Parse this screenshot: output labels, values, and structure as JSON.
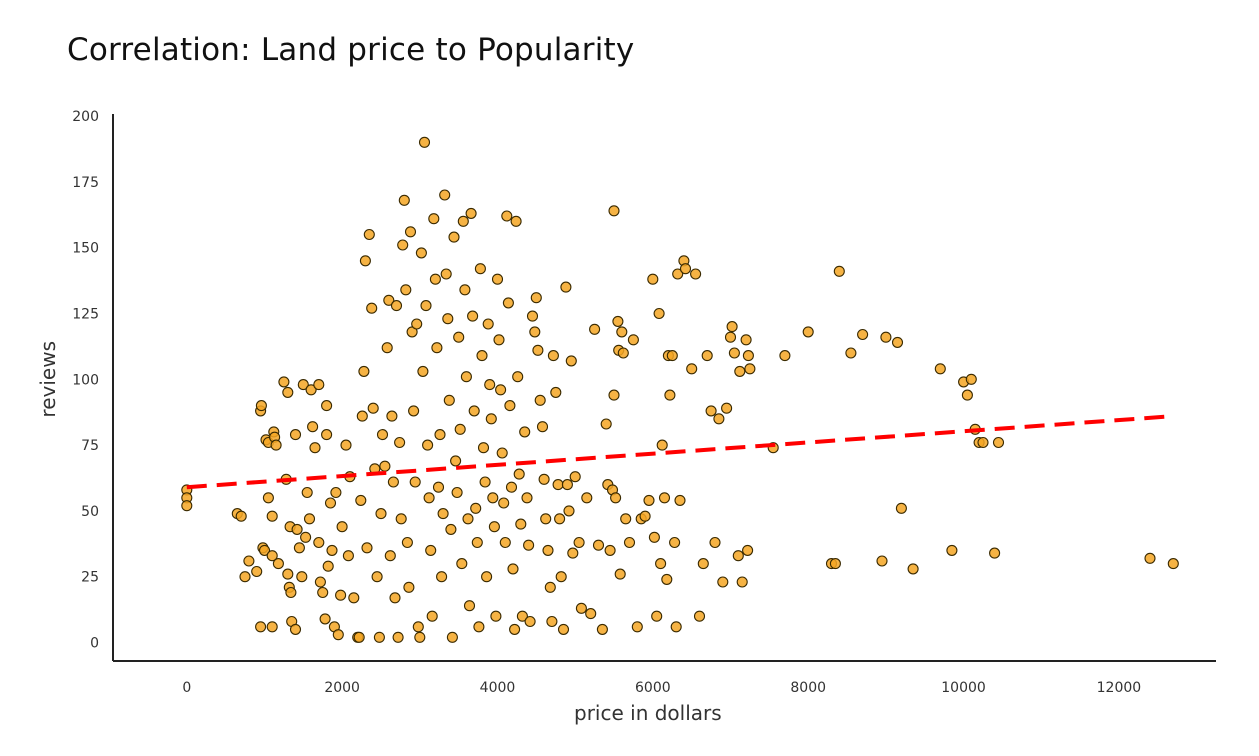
{
  "chart_data": {
    "type": "scatter",
    "title": "Correlation: Land price to Popularity",
    "xlabel": "price in dollars",
    "ylabel": "reviews",
    "xlim": [
      -950,
      13250
    ],
    "ylim": [
      -7,
      200
    ],
    "xticks": [
      0,
      2000,
      4000,
      6000,
      8000,
      10000,
      12000
    ],
    "yticks": [
      0,
      25,
      50,
      75,
      100,
      125,
      150,
      175,
      200
    ],
    "grid": false,
    "colors": {
      "point_fill": "#f5a623",
      "point_edge": "#3a2a00",
      "trend": "#ff0000",
      "axis": "#222222"
    },
    "trendline": {
      "style": "dashed",
      "x": [
        0,
        12700
      ],
      "y": [
        59,
        86
      ]
    },
    "points": [
      [
        0,
        58
      ],
      [
        0,
        55
      ],
      [
        0,
        52
      ],
      [
        650,
        49
      ],
      [
        700,
        48
      ],
      [
        750,
        25
      ],
      [
        800,
        31
      ],
      [
        900,
        27
      ],
      [
        950,
        6
      ],
      [
        950,
        88
      ],
      [
        960,
        90
      ],
      [
        980,
        36
      ],
      [
        1000,
        35
      ],
      [
        1020,
        77
      ],
      [
        1050,
        55
      ],
      [
        1050,
        76
      ],
      [
        1100,
        48
      ],
      [
        1100,
        33
      ],
      [
        1100,
        6
      ],
      [
        1120,
        80
      ],
      [
        1130,
        78
      ],
      [
        1150,
        75
      ],
      [
        1180,
        30
      ],
      [
        1250,
        99
      ],
      [
        1280,
        62
      ],
      [
        1300,
        95
      ],
      [
        1300,
        26
      ],
      [
        1320,
        21
      ],
      [
        1330,
        44
      ],
      [
        1340,
        19
      ],
      [
        1350,
        8
      ],
      [
        1400,
        5
      ],
      [
        1400,
        79
      ],
      [
        1420,
        43
      ],
      [
        1450,
        36
      ],
      [
        1480,
        25
      ],
      [
        1500,
        98
      ],
      [
        1530,
        40
      ],
      [
        1550,
        57
      ],
      [
        1580,
        47
      ],
      [
        1600,
        96
      ],
      [
        1620,
        82
      ],
      [
        1650,
        74
      ],
      [
        1700,
        98
      ],
      [
        1700,
        38
      ],
      [
        1720,
        23
      ],
      [
        1750,
        19
      ],
      [
        1780,
        9
      ],
      [
        1800,
        79
      ],
      [
        1800,
        90
      ],
      [
        1820,
        29
      ],
      [
        1850,
        53
      ],
      [
        1870,
        35
      ],
      [
        1900,
        6
      ],
      [
        1920,
        57
      ],
      [
        1950,
        3
      ],
      [
        1980,
        18
      ],
      [
        2000,
        44
      ],
      [
        2050,
        75
      ],
      [
        2080,
        33
      ],
      [
        2100,
        63
      ],
      [
        2150,
        17
      ],
      [
        2200,
        2
      ],
      [
        2220,
        2
      ],
      [
        2240,
        54
      ],
      [
        2260,
        86
      ],
      [
        2280,
        103
      ],
      [
        2300,
        145
      ],
      [
        2320,
        36
      ],
      [
        2350,
        155
      ],
      [
        2380,
        127
      ],
      [
        2400,
        89
      ],
      [
        2420,
        66
      ],
      [
        2450,
        25
      ],
      [
        2480,
        2
      ],
      [
        2500,
        49
      ],
      [
        2520,
        79
      ],
      [
        2550,
        67
      ],
      [
        2580,
        112
      ],
      [
        2600,
        130
      ],
      [
        2620,
        33
      ],
      [
        2640,
        86
      ],
      [
        2660,
        61
      ],
      [
        2680,
        17
      ],
      [
        2700,
        128
      ],
      [
        2720,
        2
      ],
      [
        2740,
        76
      ],
      [
        2760,
        47
      ],
      [
        2780,
        151
      ],
      [
        2800,
        168
      ],
      [
        2820,
        134
      ],
      [
        2840,
        38
      ],
      [
        2860,
        21
      ],
      [
        2880,
        156
      ],
      [
        2900,
        118
      ],
      [
        2920,
        88
      ],
      [
        2940,
        61
      ],
      [
        2960,
        121
      ],
      [
        2980,
        6
      ],
      [
        3000,
        2
      ],
      [
        3020,
        148
      ],
      [
        3040,
        103
      ],
      [
        3060,
        190
      ],
      [
        3080,
        128
      ],
      [
        3100,
        75
      ],
      [
        3120,
        55
      ],
      [
        3140,
        35
      ],
      [
        3160,
        10
      ],
      [
        3180,
        161
      ],
      [
        3200,
        138
      ],
      [
        3220,
        112
      ],
      [
        3240,
        59
      ],
      [
        3260,
        79
      ],
      [
        3280,
        25
      ],
      [
        3300,
        49
      ],
      [
        3320,
        170
      ],
      [
        3340,
        140
      ],
      [
        3360,
        123
      ],
      [
        3380,
        92
      ],
      [
        3400,
        43
      ],
      [
        3420,
        2
      ],
      [
        3440,
        154
      ],
      [
        3460,
        69
      ],
      [
        3480,
        57
      ],
      [
        3500,
        116
      ],
      [
        3520,
        81
      ],
      [
        3540,
        30
      ],
      [
        3560,
        160
      ],
      [
        3580,
        134
      ],
      [
        3600,
        101
      ],
      [
        3620,
        47
      ],
      [
        3640,
        14
      ],
      [
        3660,
        163
      ],
      [
        3680,
        124
      ],
      [
        3700,
        88
      ],
      [
        3720,
        51
      ],
      [
        3740,
        38
      ],
      [
        3760,
        6
      ],
      [
        3780,
        142
      ],
      [
        3800,
        109
      ],
      [
        3820,
        74
      ],
      [
        3840,
        61
      ],
      [
        3860,
        25
      ],
      [
        3880,
        121
      ],
      [
        3900,
        98
      ],
      [
        3920,
        85
      ],
      [
        3940,
        55
      ],
      [
        3960,
        44
      ],
      [
        3980,
        10
      ],
      [
        4000,
        138
      ],
      [
        4020,
        115
      ],
      [
        4040,
        96
      ],
      [
        4060,
        72
      ],
      [
        4080,
        53
      ],
      [
        4100,
        38
      ],
      [
        4120,
        162
      ],
      [
        4140,
        129
      ],
      [
        4160,
        90
      ],
      [
        4180,
        59
      ],
      [
        4200,
        28
      ],
      [
        4220,
        5
      ],
      [
        4240,
        160
      ],
      [
        4260,
        101
      ],
      [
        4280,
        64
      ],
      [
        4300,
        45
      ],
      [
        4320,
        10
      ],
      [
        4350,
        80
      ],
      [
        4380,
        55
      ],
      [
        4400,
        37
      ],
      [
        4420,
        8
      ],
      [
        4450,
        124
      ],
      [
        4480,
        118
      ],
      [
        4500,
        131
      ],
      [
        4520,
        111
      ],
      [
        4550,
        92
      ],
      [
        4580,
        82
      ],
      [
        4600,
        62
      ],
      [
        4620,
        47
      ],
      [
        4650,
        35
      ],
      [
        4680,
        21
      ],
      [
        4700,
        8
      ],
      [
        4720,
        109
      ],
      [
        4750,
        95
      ],
      [
        4780,
        60
      ],
      [
        4800,
        47
      ],
      [
        4820,
        25
      ],
      [
        4850,
        5
      ],
      [
        4880,
        135
      ],
      [
        4900,
        60
      ],
      [
        4920,
        50
      ],
      [
        4950,
        107
      ],
      [
        4970,
        34
      ],
      [
        5000,
        63
      ],
      [
        5050,
        38
      ],
      [
        5080,
        13
      ],
      [
        5150,
        55
      ],
      [
        5200,
        11
      ],
      [
        5250,
        119
      ],
      [
        5300,
        37
      ],
      [
        5350,
        5
      ],
      [
        5400,
        83
      ],
      [
        5420,
        60
      ],
      [
        5450,
        35
      ],
      [
        5480,
        58
      ],
      [
        5500,
        164
      ],
      [
        5500,
        94
      ],
      [
        5520,
        55
      ],
      [
        5550,
        122
      ],
      [
        5560,
        111
      ],
      [
        5580,
        26
      ],
      [
        5600,
        118
      ],
      [
        5620,
        110
      ],
      [
        5650,
        47
      ],
      [
        5700,
        38
      ],
      [
        5750,
        115
      ],
      [
        5800,
        6
      ],
      [
        5850,
        47
      ],
      [
        5900,
        48
      ],
      [
        5950,
        54
      ],
      [
        6000,
        138
      ],
      [
        6020,
        40
      ],
      [
        6050,
        10
      ],
      [
        6080,
        125
      ],
      [
        6100,
        30
      ],
      [
        6120,
        75
      ],
      [
        6150,
        55
      ],
      [
        6180,
        24
      ],
      [
        6200,
        109
      ],
      [
        6220,
        94
      ],
      [
        6250,
        109
      ],
      [
        6280,
        38
      ],
      [
        6300,
        6
      ],
      [
        6320,
        140
      ],
      [
        6350,
        54
      ],
      [
        6400,
        145
      ],
      [
        6420,
        142
      ],
      [
        6500,
        104
      ],
      [
        6550,
        140
      ],
      [
        6600,
        10
      ],
      [
        6650,
        30
      ],
      [
        6700,
        109
      ],
      [
        6750,
        88
      ],
      [
        6800,
        38
      ],
      [
        6850,
        85
      ],
      [
        6900,
        23
      ],
      [
        6950,
        89
      ],
      [
        7000,
        116
      ],
      [
        7020,
        120
      ],
      [
        7050,
        110
      ],
      [
        7100,
        33
      ],
      [
        7120,
        103
      ],
      [
        7150,
        23
      ],
      [
        7200,
        115
      ],
      [
        7220,
        35
      ],
      [
        7230,
        109
      ],
      [
        7250,
        104
      ],
      [
        7550,
        74
      ],
      [
        7700,
        109
      ],
      [
        8000,
        118
      ],
      [
        8300,
        30
      ],
      [
        8350,
        30
      ],
      [
        8400,
        141
      ],
      [
        8550,
        110
      ],
      [
        8700,
        117
      ],
      [
        8950,
        31
      ],
      [
        9000,
        116
      ],
      [
        9150,
        114
      ],
      [
        9200,
        51
      ],
      [
        9350,
        28
      ],
      [
        9700,
        104
      ],
      [
        9850,
        35
      ],
      [
        10000,
        99
      ],
      [
        10050,
        94
      ],
      [
        10100,
        100
      ],
      [
        10150,
        81
      ],
      [
        10200,
        76
      ],
      [
        10250,
        76
      ],
      [
        10400,
        34
      ],
      [
        10450,
        76
      ],
      [
        12400,
        32
      ],
      [
        12700,
        30
      ]
    ]
  }
}
